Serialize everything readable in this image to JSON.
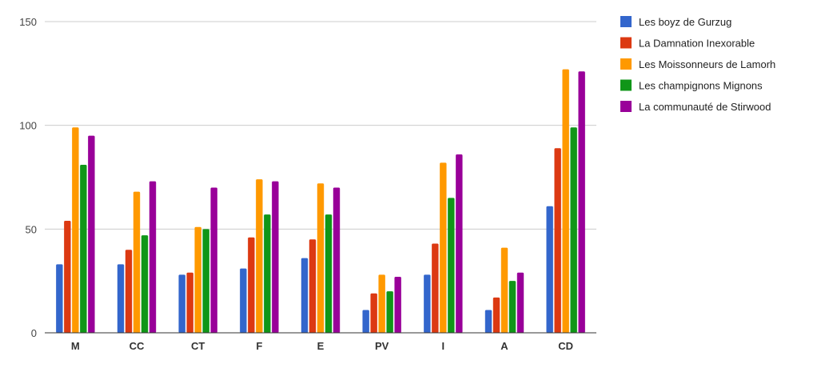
{
  "chart_data": {
    "type": "bar",
    "categories": [
      "M",
      "CC",
      "CT",
      "F",
      "E",
      "PV",
      "I",
      "A",
      "CD"
    ],
    "ylim": [
      0,
      150
    ],
    "yticks": [
      0,
      50,
      100,
      150
    ],
    "grid": true,
    "legend_position": "right",
    "series": [
      {
        "name": "Les boyz de Gurzug",
        "color": "#3366cc",
        "values": [
          33,
          33,
          28,
          31,
          36,
          11,
          28,
          11,
          61
        ]
      },
      {
        "name": "La Damnation Inexorable",
        "color": "#dc3912",
        "values": [
          54,
          40,
          29,
          46,
          45,
          19,
          43,
          17,
          89
        ]
      },
      {
        "name": "Les Moissonneurs de Lamorh",
        "color": "#ff9900",
        "values": [
          99,
          68,
          51,
          74,
          72,
          28,
          82,
          41,
          127
        ]
      },
      {
        "name": "Les champignons Mignons",
        "color": "#109618",
        "values": [
          81,
          47,
          50,
          57,
          57,
          20,
          65,
          25,
          99
        ]
      },
      {
        "name": "La communauté de Stirwood",
        "color": "#990099",
        "values": [
          95,
          73,
          70,
          73,
          70,
          27,
          86,
          29,
          126
        ]
      }
    ]
  }
}
